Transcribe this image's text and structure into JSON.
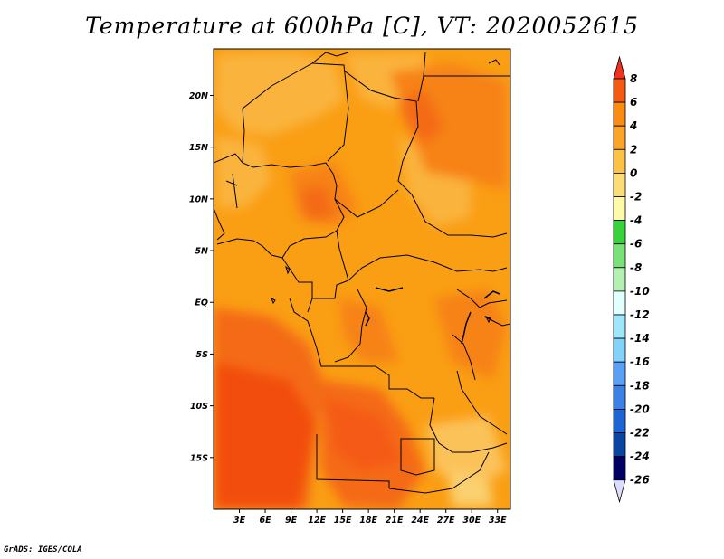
{
  "title": "Temperature at 600hPa [C], VT: 2020052615",
  "credit": "GrADS: IGES/COLA",
  "map": {
    "lat_ticks": [
      {
        "label": "20N",
        "value": 20
      },
      {
        "label": "15N",
        "value": 15
      },
      {
        "label": "10N",
        "value": 10
      },
      {
        "label": "5N",
        "value": 5
      },
      {
        "label": "EQ",
        "value": 0
      },
      {
        "label": "5S",
        "value": -5
      },
      {
        "label": "10S",
        "value": -10
      },
      {
        "label": "15S",
        "value": -15
      }
    ],
    "lon_ticks": [
      {
        "label": "3E",
        "value": 3
      },
      {
        "label": "6E",
        "value": 6
      },
      {
        "label": "9E",
        "value": 9
      },
      {
        "label": "12E",
        "value": 12
      },
      {
        "label": "15E",
        "value": 15
      },
      {
        "label": "18E",
        "value": 18
      },
      {
        "label": "21E",
        "value": 21
      },
      {
        "label": "24E",
        "value": 24
      },
      {
        "label": "27E",
        "value": 27
      },
      {
        "label": "30E",
        "value": 30
      },
      {
        "label": "33E",
        "value": 33
      }
    ],
    "lat_range": [
      -20,
      24.5
    ],
    "lon_range": [
      0,
      34.5
    ]
  },
  "colorbar": {
    "levels": [
      "8",
      "6",
      "4",
      "2",
      "0",
      "-2",
      "-4",
      "-6",
      "-8",
      "-10",
      "-12",
      "-14",
      "-16",
      "-18",
      "-20",
      "-22",
      "-24",
      "-26"
    ],
    "colors": [
      "#f0321e",
      "#f55a14",
      "#fa8c14",
      "#faa528",
      "#fac346",
      "#fadc78",
      "#fffaaa",
      "#37d23c",
      "#78e178",
      "#b4f0b4",
      "#e1ffff",
      "#a0e6fa",
      "#82d2fa",
      "#5aa0f5",
      "#3c82e6",
      "#1e64d2",
      "#0a46a0",
      "#000064",
      "#dcdcff"
    ]
  }
}
